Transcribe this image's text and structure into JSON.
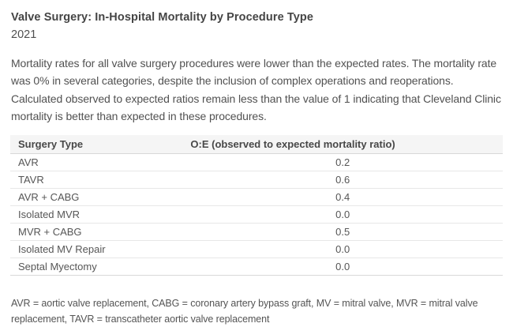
{
  "page": {
    "title": "Valve Surgery: In-Hospital Mortality by Procedure Type",
    "year": "2021",
    "description": "Mortality rates for all valve surgery procedures were lower than the expected rates. The mortality rate was 0% in several categories, despite the inclusion of complex operations and reoperations. Calculated observed to expected ratios remain less than the value of 1 indicating that Cleveland Clinic mortality is better than expected in these procedures.",
    "footnote": "AVR = aortic valve replacement, CABG = coronary artery bypass graft, MV = mitral valve, MVR = mitral valve replacement, TAVR = transcatheter aortic valve replacement"
  },
  "chart_data": {
    "type": "table",
    "title": "Valve Surgery: In-Hospital Mortality by Procedure Type",
    "subtitle": "2021",
    "columns": [
      "Surgery Type",
      "O:E (observed to expected mortality ratio)"
    ],
    "rows": [
      [
        "AVR",
        "0.2"
      ],
      [
        "TAVR",
        "0.6"
      ],
      [
        "AVR + CABG",
        "0.4"
      ],
      [
        "Isolated MVR",
        "0.0"
      ],
      [
        "MVR + CABG",
        "0.5"
      ],
      [
        "Isolated MV Repair",
        "0.0"
      ],
      [
        "Septal Myectomy",
        "0.0"
      ]
    ]
  },
  "colors": {
    "table_header_bg": "#f5f5f5",
    "border_strong": "#d8d8d8",
    "border_light": "#e7e7e7",
    "text_title": "#454545",
    "text_body": "#515151"
  }
}
